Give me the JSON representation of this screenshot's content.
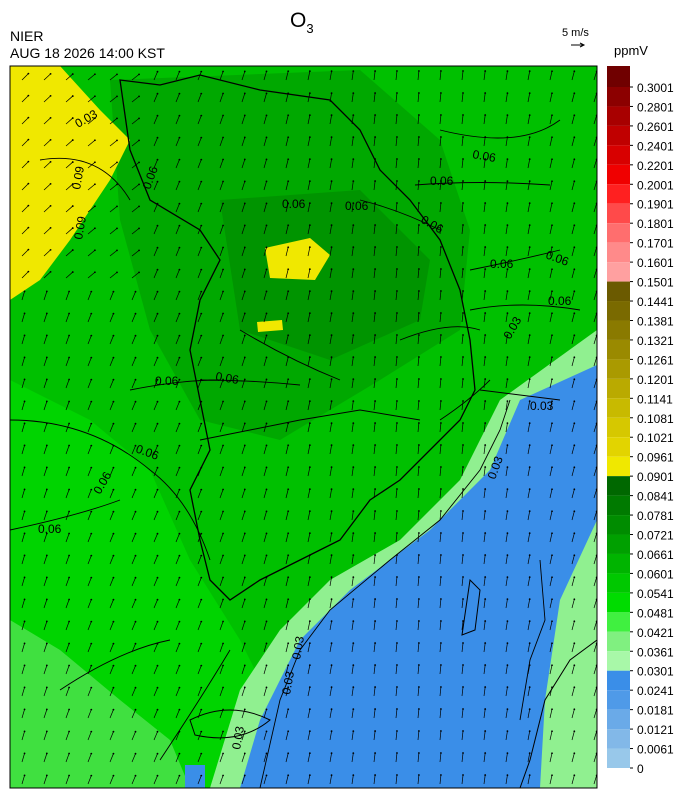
{
  "header": {
    "agency": "NIER",
    "timestamp": "AUG 18 2026 14:00 KST",
    "title": "O",
    "title_sub": "3",
    "wind_scale": "5 m/s"
  },
  "colorbar": {
    "unit": "ppmV",
    "levels": [
      0.3001,
      0.2801,
      0.2601,
      0.2401,
      0.2201,
      0.2001,
      0.1901,
      0.1801,
      0.1701,
      0.1601,
      0.1501,
      0.1441,
      0.1381,
      0.1321,
      0.1261,
      0.1201,
      0.1141,
      0.1081,
      0.1021,
      0.0961,
      0.0901,
      0.0841,
      0.0781,
      0.0721,
      0.0661,
      0.0601,
      0.0541,
      0.0481,
      0.0421,
      0.0361,
      0.0301,
      0.0241,
      0.0181,
      0.0121,
      0.0061,
      0
    ],
    "colors": [
      "#700000",
      "#8c0000",
      "#a80000",
      "#c00000",
      "#d80000",
      "#f00000",
      "#ff2020",
      "#ff4a4a",
      "#ff6e6e",
      "#ff8a8a",
      "#ffa0a0",
      "#6b5a00",
      "#7a6a00",
      "#8a7a00",
      "#9a8a00",
      "#aa9a00",
      "#baaa00",
      "#c8ba00",
      "#d6c800",
      "#e2d400",
      "#f0e800",
      "#006800",
      "#007a00",
      "#008c00",
      "#00a000",
      "#00b400",
      "#00c800",
      "#00dc00",
      "#40f040",
      "#80f080",
      "#a8f8a8",
      "#3a8ee8",
      "#4f9ae8",
      "#6aaae8",
      "#82b8e8",
      "#98c8ea"
    ]
  },
  "map": {
    "contour_labels": [
      "0.03",
      "0.09",
      "0.09",
      "0.06",
      "0.06",
      "0.06",
      "0.06",
      "0.06",
      "0.06",
      "0.06",
      "0.06",
      "0.06",
      "0.06",
      "0.06",
      "0.06",
      "0.06",
      "0.06",
      "0.03",
      "0.03",
      "0.03",
      "0.03",
      "0.03",
      "0.03"
    ]
  }
}
